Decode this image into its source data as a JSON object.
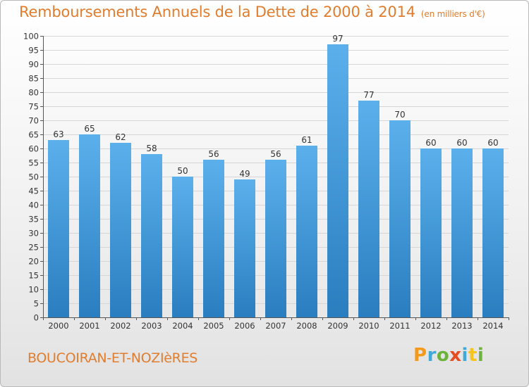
{
  "title": "Remboursements Annuels de la Dette de 2000 à 2014",
  "unit_label": "(en milliers d'€)",
  "commune": "BOUCOIRAN-ET-NOZIèRES",
  "logo_letters": [
    "P",
    "r",
    "o",
    "x",
    "i",
    "t",
    "i"
  ],
  "colors": {
    "title": "#e07d2e",
    "bar_top": "#5bb0ec",
    "bar_bottom": "#2a7ebf",
    "grid": "#d6d6d6"
  },
  "chart_data": {
    "type": "bar",
    "categories": [
      "2000",
      "2001",
      "2002",
      "2003",
      "2004",
      "2005",
      "2006",
      "2007",
      "2008",
      "2009",
      "2010",
      "2011",
      "2012",
      "2013",
      "2014"
    ],
    "values": [
      63,
      65,
      62,
      58,
      50,
      56,
      49,
      56,
      61,
      97,
      77,
      70,
      60,
      60,
      60
    ],
    "title": "Remboursements Annuels de la Dette de 2000 à 2014",
    "xlabel": "",
    "ylabel": "",
    "ylim": [
      0,
      100
    ],
    "yticks": [
      0,
      5,
      10,
      15,
      20,
      25,
      30,
      35,
      40,
      45,
      50,
      55,
      60,
      65,
      70,
      75,
      80,
      85,
      90,
      95,
      100
    ],
    "grid": true
  }
}
